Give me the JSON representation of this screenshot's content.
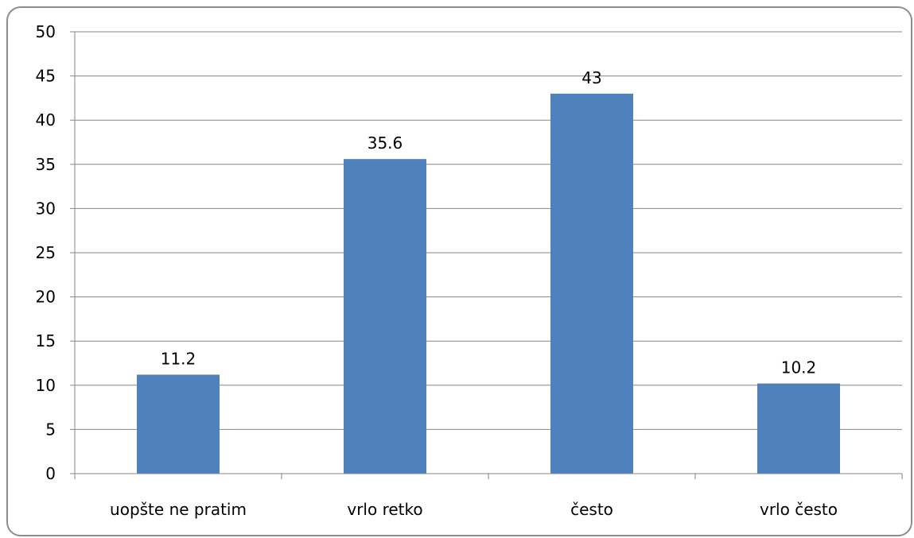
{
  "chart_data": {
    "type": "bar",
    "title": "",
    "xlabel": "",
    "ylabel": "",
    "categories": [
      "uopšte ne pratim",
      "vrlo retko",
      "često",
      "vrlo često"
    ],
    "values": [
      11.2,
      35.6,
      43,
      10.2
    ],
    "data_labels": [
      "11.2",
      "35.6",
      "43",
      "10.2"
    ],
    "y_ticks": [
      "0",
      "5",
      "10",
      "15",
      "20",
      "25",
      "30",
      "35",
      "40",
      "45",
      "50"
    ],
    "ylim": [
      0,
      50
    ],
    "grid": true,
    "legend": "none",
    "bar_color": "#4F81BD"
  }
}
